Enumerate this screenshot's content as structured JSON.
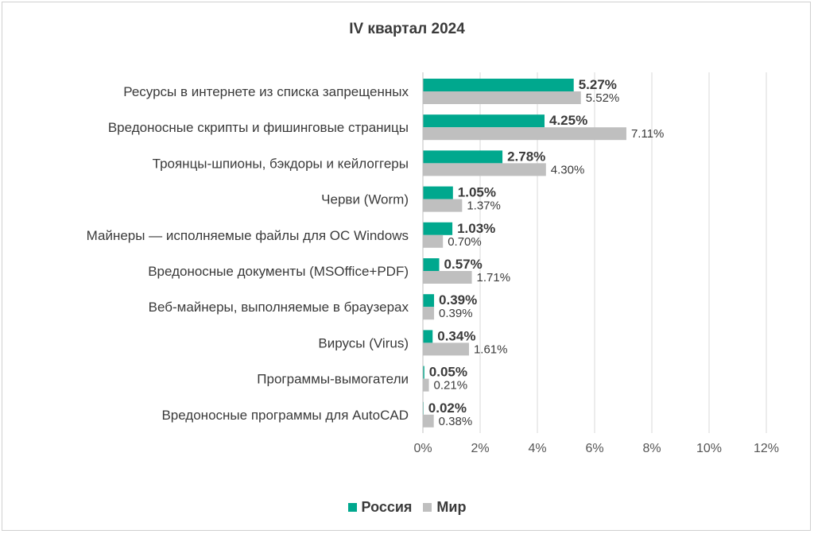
{
  "chart_data": {
    "type": "bar",
    "orientation": "horizontal",
    "title": "IV квартал 2024",
    "categories": [
      "Ресурсы в интернете из списка запрещенных",
      "Вредоносные скрипты и фишинговые страницы",
      "Троянцы-шпионы, бэкдоры и кейлоггеры",
      "Черви (Worm)",
      "Майнеры — исполняемые файлы для ОС Windows",
      "Вредоносные документы (MSOffice+PDF)",
      "Веб-майнеры, выполняемые в браузерах",
      "Вирусы (Virus)",
      "Программы-вымогатели",
      "Вредоносные программы для AutoCAD"
    ],
    "series": [
      {
        "name": "Россия",
        "color": "#00a88e",
        "values": [
          5.27,
          4.25,
          2.78,
          1.05,
          1.03,
          0.57,
          0.39,
          0.34,
          0.05,
          0.02
        ],
        "labels": [
          "5.27%",
          "4.25%",
          "2.78%",
          "1.05%",
          "1.03%",
          "0.57%",
          "0.39%",
          "0.34%",
          "0.05%",
          "0.02%"
        ]
      },
      {
        "name": "Мир",
        "color": "#bfbfbf",
        "values": [
          5.52,
          7.11,
          4.3,
          1.37,
          0.7,
          1.71,
          0.39,
          1.61,
          0.21,
          0.38
        ],
        "labels": [
          "5.52%",
          "7.11%",
          "4.30%",
          "1.37%",
          "0.70%",
          "1.71%",
          "0.39%",
          "1.61%",
          "0.21%",
          "0.38%"
        ]
      }
    ],
    "xlim": [
      0,
      12
    ],
    "xticks": [
      0,
      2,
      4,
      6,
      8,
      10,
      12
    ],
    "xtick_labels": [
      "0%",
      "2%",
      "4%",
      "6%",
      "8%",
      "10%",
      "12%"
    ],
    "grid": true,
    "legend": "bottom-center",
    "xlabel": "",
    "ylabel": ""
  }
}
